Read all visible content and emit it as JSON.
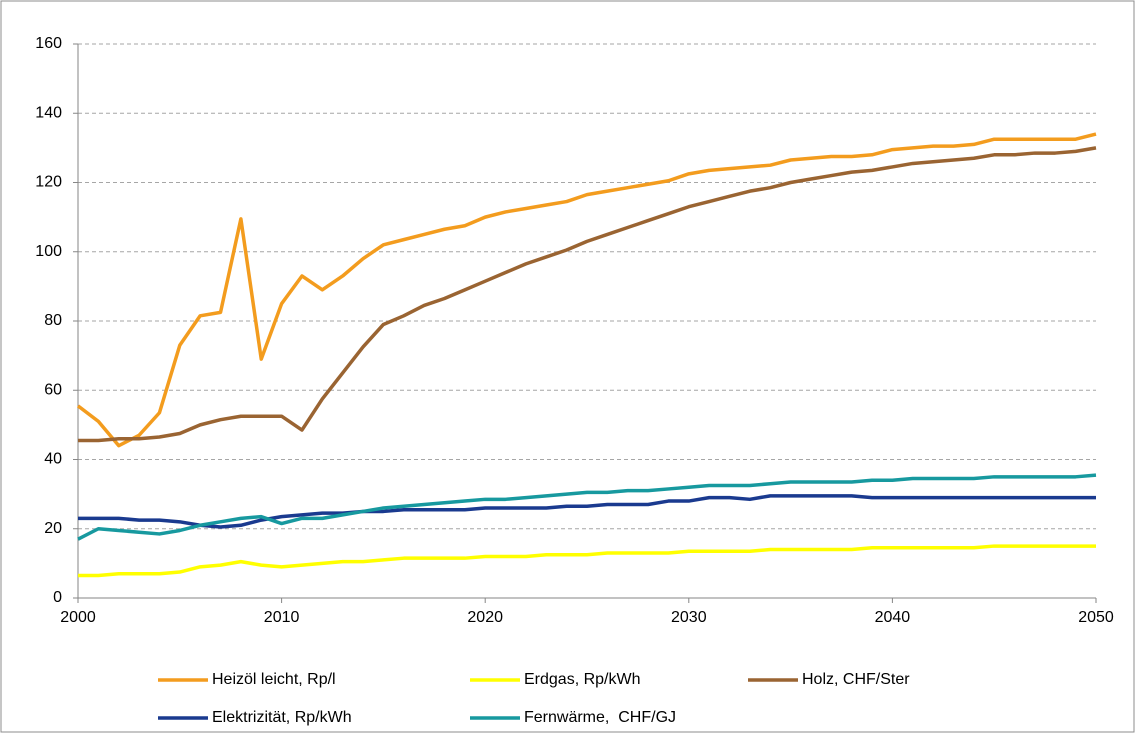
{
  "chart_data": {
    "type": "line",
    "x": [
      2000,
      2001,
      2002,
      2003,
      2004,
      2005,
      2006,
      2007,
      2008,
      2009,
      2010,
      2011,
      2012,
      2013,
      2014,
      2015,
      2016,
      2017,
      2018,
      2019,
      2020,
      2021,
      2022,
      2023,
      2024,
      2025,
      2026,
      2027,
      2028,
      2029,
      2030,
      2031,
      2032,
      2033,
      2034,
      2035,
      2036,
      2037,
      2038,
      2039,
      2040,
      2041,
      2042,
      2043,
      2044,
      2045,
      2046,
      2047,
      2048,
      2049,
      2050
    ],
    "series": [
      {
        "name": "Heizöl leicht, Rp/l",
        "color": "#f39c1e",
        "values": [
          55.5,
          51,
          44,
          47,
          53.5,
          73,
          81.5,
          82.5,
          109.5,
          69,
          85,
          93,
          89,
          93,
          98,
          102,
          103.5,
          105,
          106.5,
          107.5,
          110,
          111.5,
          112.5,
          113.5,
          114.5,
          116.5,
          117.5,
          118.5,
          119.5,
          120.5,
          122.5,
          123.5,
          124,
          124.5,
          125,
          126.5,
          127,
          127.5,
          127.5,
          128,
          129.5,
          130,
          130.5,
          130.5,
          131,
          132.5,
          132.5,
          132.5,
          132.5,
          132.5,
          134
        ]
      },
      {
        "name": "Erdgas, Rp/kWh",
        "color": "#ffff00",
        "values": [
          6.5,
          6.5,
          7,
          7,
          7,
          7.5,
          9,
          9.5,
          10.5,
          9.5,
          9,
          9.5,
          10,
          10.5,
          10.5,
          11,
          11.5,
          11.5,
          11.5,
          11.5,
          12,
          12,
          12,
          12.5,
          12.5,
          12.5,
          13,
          13,
          13,
          13,
          13.5,
          13.5,
          13.5,
          13.5,
          14,
          14,
          14,
          14,
          14,
          14.5,
          14.5,
          14.5,
          14.5,
          14.5,
          14.5,
          15,
          15,
          15,
          15,
          15,
          15
        ]
      },
      {
        "name": "Holz, CHF/Ster",
        "color": "#9a6432",
        "values": [
          45.5,
          45.5,
          46,
          46,
          46.5,
          47.5,
          50,
          51.5,
          52.5,
          52.5,
          52.5,
          48.5,
          57.5,
          65,
          72.5,
          79,
          81.5,
          84.5,
          86.5,
          89,
          91.5,
          94,
          96.5,
          98.5,
          100.5,
          103,
          105,
          107,
          109,
          111,
          113,
          114.5,
          116,
          117.5,
          118.5,
          120,
          121,
          122,
          123,
          123.5,
          124.5,
          125.5,
          126,
          126.5,
          127,
          128,
          128,
          128.5,
          128.5,
          129,
          130
        ]
      },
      {
        "name": "Elektrizität, Rp/kWh",
        "color": "#1a3a8f",
        "values": [
          23,
          23,
          23,
          22.5,
          22.5,
          22,
          21,
          20.5,
          21,
          22.5,
          23.5,
          24,
          24.5,
          24.5,
          25,
          25,
          25.5,
          25.5,
          25.5,
          25.5,
          26,
          26,
          26,
          26,
          26.5,
          26.5,
          27,
          27,
          27,
          28,
          28,
          29,
          29,
          28.5,
          29.5,
          29.5,
          29.5,
          29.5,
          29.5,
          29,
          29,
          29,
          29,
          29,
          29,
          29,
          29,
          29,
          29,
          29,
          29
        ]
      },
      {
        "name": "Fernwärme,  CHF/GJ",
        "color": "#17999f",
        "values": [
          17,
          20,
          19.5,
          19,
          18.5,
          19.5,
          21,
          22,
          23,
          23.5,
          21.5,
          23,
          23,
          24,
          25,
          26,
          26.5,
          27,
          27.5,
          28,
          28.5,
          28.5,
          29,
          29.5,
          30,
          30.5,
          30.5,
          31,
          31,
          31.5,
          32,
          32.5,
          32.5,
          32.5,
          33,
          33.5,
          33.5,
          33.5,
          33.5,
          34,
          34,
          34.5,
          34.5,
          34.5,
          34.5,
          35,
          35,
          35,
          35,
          35,
          35.5
        ]
      }
    ],
    "xlim": [
      2000,
      2050
    ],
    "xticks": [
      2000,
      2010,
      2020,
      2030,
      2040,
      2050
    ],
    "ylim": [
      0,
      160
    ],
    "yticks": [
      0,
      20,
      40,
      60,
      80,
      100,
      120,
      140,
      160
    ],
    "grid": true,
    "legend": "bottom"
  }
}
